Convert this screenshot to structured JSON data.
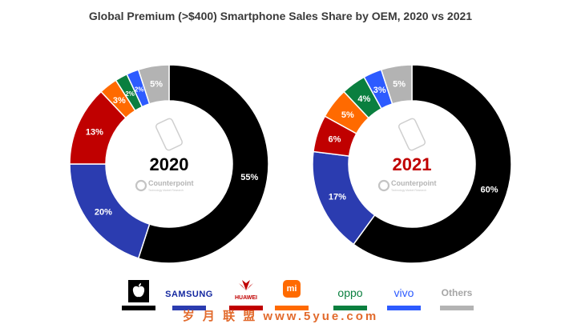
{
  "title": "Global Premium (>$400) Smartphone Sales Share by OEM, 2020 vs 2021",
  "legend": [
    {
      "brand": "Apple",
      "label": "",
      "text_color": "#000000",
      "color": "#000000",
      "icon": "apple-logo-icon"
    },
    {
      "brand": "Samsung",
      "label": "SAMSUNG",
      "text_color": "#1428a0",
      "color": "#2b3cb0",
      "icon": "samsung-wordmark"
    },
    {
      "brand": "Huawei",
      "label": "HUAWEI",
      "text_color": "#c00000",
      "color": "#c00000",
      "icon": "huawei-flower-icon"
    },
    {
      "brand": "Xiaomi",
      "label": "mi",
      "text_color": "#ffffff",
      "color": "#ff6a00",
      "icon": "xiaomi-mi-icon"
    },
    {
      "brand": "Oppo",
      "label": "oppo",
      "text_color": "#0a7f3f",
      "color": "#0a7f3f",
      "icon": "oppo-wordmark"
    },
    {
      "brand": "Vivo",
      "label": "vivo",
      "text_color": "#2d5bff",
      "color": "#2d5bff",
      "icon": "vivo-wordmark"
    },
    {
      "brand": "Others",
      "label": "Others",
      "text_color": "#a6a6a6",
      "color": "#b3b3b3",
      "icon": ""
    }
  ],
  "watermark": "岁 月 联 盟   www.5yue.com",
  "chart_data": [
    {
      "type": "pie",
      "center_label": "2020",
      "center_color": "#000000",
      "logo_text": "Counterpoint",
      "logo_sub": "Technology Market Research",
      "slices": [
        {
          "name": "Apple",
          "value": 55,
          "label": "55%",
          "color": "#000000"
        },
        {
          "name": "Samsung",
          "value": 20,
          "label": "20%",
          "color": "#2b3cb0"
        },
        {
          "name": "Huawei",
          "value": 13,
          "label": "13%",
          "color": "#c00000"
        },
        {
          "name": "Xiaomi",
          "value": 3,
          "label": "3%",
          "color": "#ff6a00"
        },
        {
          "name": "Oppo",
          "value": 2,
          "label": "2%",
          "color": "#0a7f3f"
        },
        {
          "name": "Vivo",
          "value": 2,
          "label": "2%",
          "color": "#2d5bff"
        },
        {
          "name": "Others",
          "value": 5,
          "label": "5%",
          "color": "#b3b3b3"
        }
      ]
    },
    {
      "type": "pie",
      "center_label": "2021",
      "center_color": "#c00000",
      "logo_text": "Counterpoint",
      "logo_sub": "Technology Market Research",
      "slices": [
        {
          "name": "Apple",
          "value": 60,
          "label": "60%",
          "color": "#000000"
        },
        {
          "name": "Samsung",
          "value": 17,
          "label": "17%",
          "color": "#2b3cb0"
        },
        {
          "name": "Huawei",
          "value": 6,
          "label": "6%",
          "color": "#c00000"
        },
        {
          "name": "Xiaomi",
          "value": 5,
          "label": "5%",
          "color": "#ff6a00"
        },
        {
          "name": "Oppo",
          "value": 4,
          "label": "4%",
          "color": "#0a7f3f"
        },
        {
          "name": "Vivo",
          "value": 3,
          "label": "3%",
          "color": "#2d5bff"
        },
        {
          "name": "Others",
          "value": 5,
          "label": "5%",
          "color": "#b3b3b3"
        }
      ]
    }
  ]
}
